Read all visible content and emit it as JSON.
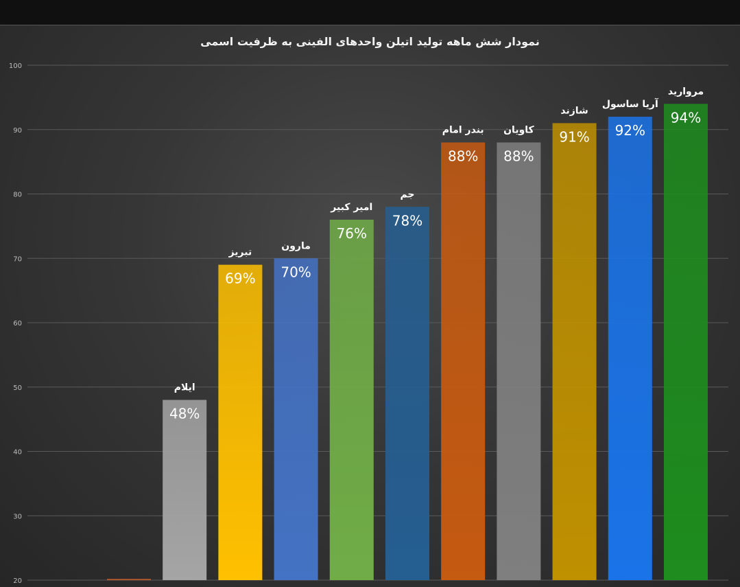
{
  "chart_data": {
    "type": "bar",
    "title": "نمودار شش ماهه تولید اتیلن واحدهای الفینی به ظرفیت اسمی",
    "xlabel": "",
    "ylabel": "",
    "ylim": [
      20,
      100
    ],
    "yticks": [
      20,
      30,
      40,
      50,
      60,
      70,
      80,
      90,
      100
    ],
    "grid": true,
    "legend": "none",
    "categories": [
      "",
      "ایلام",
      "تبریز",
      "مارون",
      "امیر کبیر",
      "جم",
      "بندر امام",
      "کاویان",
      "شازند",
      "آریا ساسول",
      "مروارید"
    ],
    "values": [
      20.2,
      48,
      69,
      70,
      76,
      78,
      88,
      88,
      91,
      92,
      94
    ],
    "data_labels": [
      "",
      "48%",
      "69%",
      "70%",
      "76%",
      "78%",
      "88%",
      "88%",
      "91%",
      "92%",
      "94%"
    ],
    "colors": [
      "#b85a2a",
      "#a5a5a5",
      "#ffc000",
      "#4472c4",
      "#70ad47",
      "#255e91",
      "#c55a11",
      "#7f7f7f",
      "#bf9000",
      "#1a73e8",
      "#1e8c1e"
    ],
    "label_colors": [
      "#ffffff",
      "#ffffff",
      "#ffffff",
      "#ffffff",
      "#ffffff",
      "#ffffff",
      "#ffffff",
      "#ffffff",
      "#ffffff",
      "#ffffff",
      "#ffffff"
    ]
  }
}
